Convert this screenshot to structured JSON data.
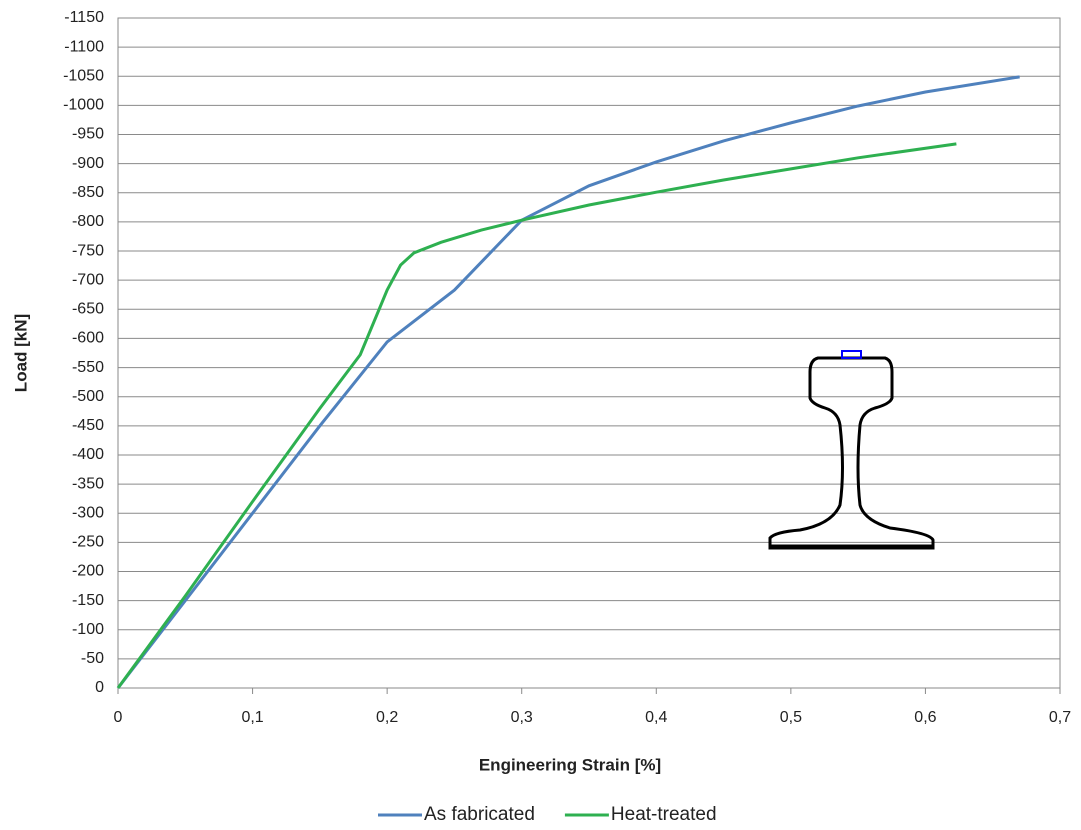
{
  "chart_data": {
    "type": "line",
    "x_label": "Engineering Strain [%]",
    "y_label": "Load [kN]",
    "xlim": [
      0,
      0.7
    ],
    "xticks": [
      0,
      {
        "value": 0.1,
        "label": "0,1"
      },
      {
        "value": 0.2,
        "label": "0,2"
      },
      {
        "value": 0.3,
        "label": "0,3"
      },
      {
        "value": 0.4,
        "label": "0,4"
      },
      {
        "value": 0.5,
        "label": "0,5"
      },
      {
        "value": 0.6,
        "label": "0,6"
      },
      {
        "value": 0.7,
        "label": "0,7"
      }
    ],
    "ylim": [
      0,
      -1150
    ],
    "yticks": [
      0,
      -50,
      -100,
      -150,
      -200,
      -250,
      -300,
      -350,
      -400,
      -450,
      -500,
      -550,
      -600,
      -650,
      -700,
      -750,
      -800,
      -850,
      -900,
      -950,
      -1000,
      -1050,
      -1100,
      -1150
    ],
    "grid": true,
    "legend": "bottom",
    "series": [
      {
        "name": "As fabricated",
        "color": "#4f81bd",
        "x": [
          0,
          0.05,
          0.1,
          0.15,
          0.2,
          0.25,
          0.3,
          0.35,
          0.4,
          0.45,
          0.5,
          0.55,
          0.6,
          0.67
        ],
        "values": [
          0,
          -150,
          -300,
          -450,
          -594,
          -683,
          -803,
          -862,
          -903,
          -939,
          -970,
          -999,
          -1023,
          -1049
        ]
      },
      {
        "name": "Heat-treated",
        "color": "#2eb050",
        "x": [
          0,
          0.05,
          0.1,
          0.15,
          0.18,
          0.2,
          0.21,
          0.22,
          0.24,
          0.27,
          0.3,
          0.35,
          0.4,
          0.45,
          0.5,
          0.55,
          0.623
        ],
        "values": [
          0,
          -158,
          -320,
          -480,
          -572,
          -683,
          -726,
          -747,
          -765,
          -786,
          -803,
          -829,
          -851,
          -872,
          -891,
          -910,
          -934
        ]
      }
    ]
  }
}
